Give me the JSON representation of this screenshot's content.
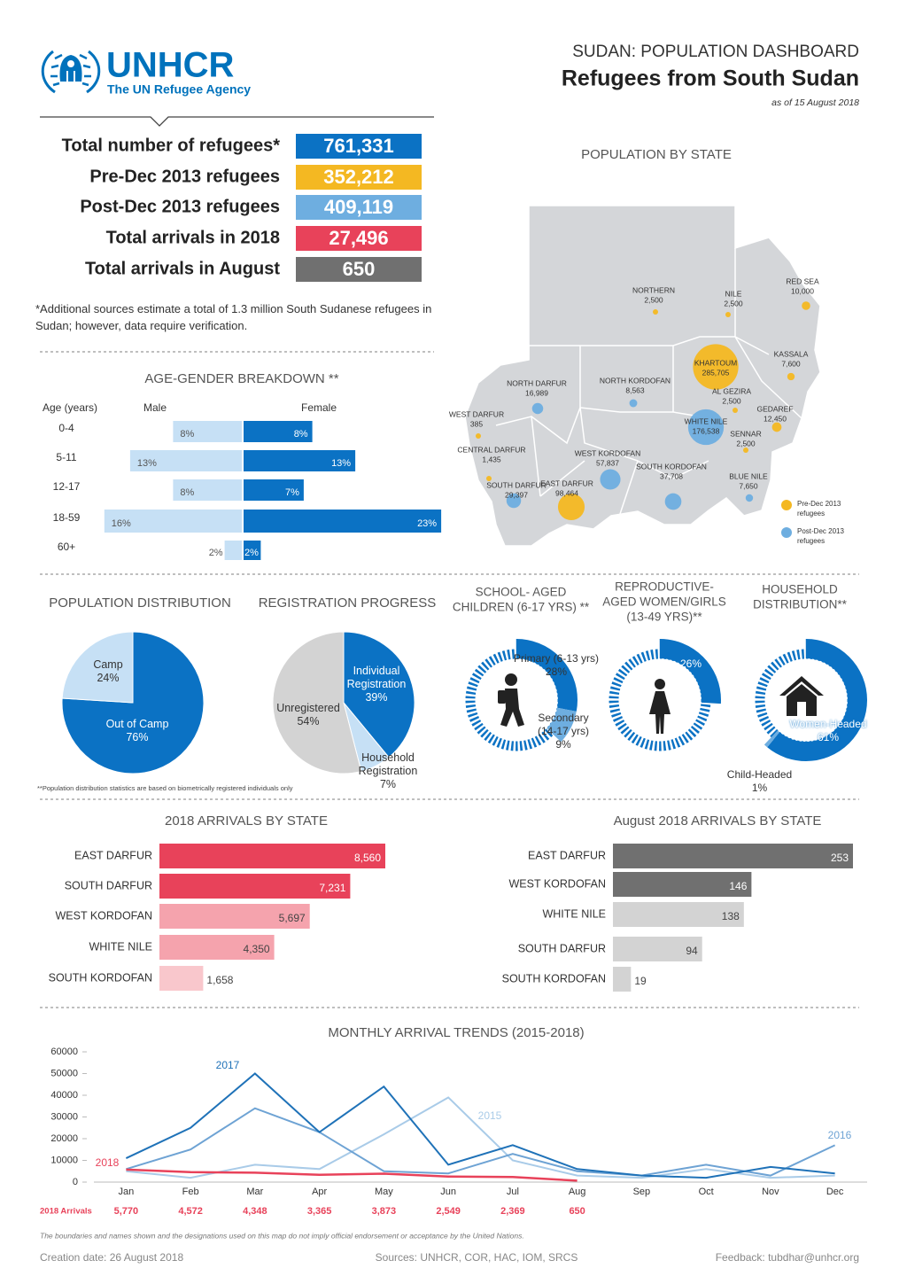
{
  "header": {
    "org": "UNHCR",
    "tagline": "The UN Refugee Agency",
    "kicker": "SUDAN: POPULATION DASHBOARD",
    "title": "Refugees from South Sudan",
    "date": "as of 15 August 2018"
  },
  "stats": [
    {
      "label": "Total number of refugees*",
      "value": "761,331",
      "color": "#0b72c4"
    },
    {
      "label": "Pre-Dec 2013 refugees",
      "value": "352,212",
      "color": "#f4b822"
    },
    {
      "label": "Post-Dec 2013 refugees",
      "value": "409,119",
      "color": "#6eaee0"
    },
    {
      "label": "Total arrivals in 2018",
      "value": "27,496",
      "color": "#e8425a"
    },
    {
      "label": "Total arrivals in August",
      "value": "650",
      "color": "#707070"
    }
  ],
  "note": "*Additional sources estimate a total of 1.3 million South Sudanese refugees in Sudan; however, data require verification.",
  "map": {
    "title": "POPULATION BY STATE",
    "states": [
      {
        "name": "NORTHERN",
        "value": 2500,
        "label": "2,500",
        "color": "#f4b822"
      },
      {
        "name": "NILE",
        "value": 2500,
        "label": "2,500",
        "color": "#f4b822"
      },
      {
        "name": "RED SEA",
        "value": 10000,
        "label": "10,000",
        "color": "#f4b822"
      },
      {
        "name": "KASSALA",
        "value": 7600,
        "label": "7,600",
        "color": "#f4b822"
      },
      {
        "name": "KHARTOUM",
        "value": 285705,
        "label": "285,705",
        "color": "#f4b822"
      },
      {
        "name": "AL GEZIRA",
        "value": 2500,
        "label": "2,500",
        "color": "#f4b822"
      },
      {
        "name": "GEDAREF",
        "value": 12450,
        "label": "12,450",
        "color": "#f4b822"
      },
      {
        "name": "WHITE NILE",
        "value": 176538,
        "label": "176,538",
        "color": "#6eaee0"
      },
      {
        "name": "SENNAR",
        "value": 2500,
        "label": "2,500",
        "color": "#f4b822"
      },
      {
        "name": "BLUE NILE",
        "value": 7650,
        "label": "7,650",
        "color": "#6eaee0"
      },
      {
        "name": "NORTH DARFUR",
        "value": 16989,
        "label": "16,989",
        "color": "#6eaee0"
      },
      {
        "name": "NORTH KORDOFAN",
        "value": 8563,
        "label": "8,563",
        "color": "#6eaee0"
      },
      {
        "name": "WEST DARFUR",
        "value": 385,
        "label": "385",
        "color": "#f4b822"
      },
      {
        "name": "CENTRAL DARFUR",
        "value": 1435,
        "label": "1,435",
        "color": "#f4b822"
      },
      {
        "name": "SOUTH DARFUR",
        "value": 29397,
        "label": "29,397",
        "color": "#6eaee0"
      },
      {
        "name": "EAST DARFUR",
        "value": 98464,
        "label": "98,464",
        "color": "#f4b822"
      },
      {
        "name": "WEST KORDOFAN",
        "value": 57837,
        "label": "57,837",
        "color": "#6eaee0"
      },
      {
        "name": "SOUTH KORDOFAN",
        "value": 37708,
        "label": "37,708",
        "color": "#6eaee0"
      }
    ],
    "legend": [
      {
        "name": "Pre-Dec 2013 refugees",
        "color": "#f4b822"
      },
      {
        "name": "Post-Dec 2013 refugees",
        "color": "#6eaee0"
      }
    ]
  },
  "chart_data": [
    {
      "type": "butterfly",
      "title": "AGE-GENDER BREAKDOWN **",
      "axis_label": "Age (years)",
      "categories": [
        "0-4",
        "5-11",
        "12-17",
        "18-59",
        "60+"
      ],
      "series": [
        {
          "name": "Male",
          "color": "#c6e0f5",
          "values": [
            8,
            13,
            8,
            16,
            2
          ],
          "value_labels": [
            "8%",
            "13%",
            "8%",
            "16%",
            "2%"
          ]
        },
        {
          "name": "Female",
          "color": "#0b72c4",
          "values": [
            8,
            13,
            7,
            23,
            2
          ],
          "value_labels": [
            "8%",
            "13%",
            "7%",
            "23%",
            "2%"
          ]
        }
      ]
    },
    {
      "type": "pie",
      "title": "POPULATION DISTRIBUTION",
      "categories": [
        "Out of Camp",
        "Camp"
      ],
      "values": [
        76,
        24
      ],
      "value_labels": [
        "76%",
        "24%"
      ],
      "colors": [
        "#0b72c4",
        "#c6e0f5"
      ],
      "note": "**Population distribution statistics are based on biometrically registered individuals only"
    },
    {
      "type": "pie",
      "title": "REGISTRATION PROGRESS",
      "categories": [
        "Individual Registration",
        "Household Registration",
        "Unregistered"
      ],
      "values": [
        39,
        7,
        54
      ],
      "value_labels": [
        "39%",
        "7%",
        "54%"
      ],
      "colors": [
        "#0b72c4",
        "#c6e0f5",
        "#d3d3d3"
      ]
    },
    {
      "type": "donut",
      "title": [
        "SCHOOL- AGED",
        "CHILDREN (6-17 YRS) **"
      ],
      "categories": [
        "Primary (6-13 yrs)",
        "Secondary (14-17 yrs)"
      ],
      "values": [
        28,
        9
      ],
      "value_labels": [
        "28%",
        "9%"
      ],
      "colors": [
        "#0b72c4",
        "#6eaee0"
      ]
    },
    {
      "type": "donut",
      "title": [
        "REPRODUCTIVE-",
        "AGED WOMEN/GIRLS",
        "(13-49 YRS)**"
      ],
      "values": [
        26
      ],
      "value_labels": [
        "26%"
      ],
      "colors": [
        "#0b72c4"
      ]
    },
    {
      "type": "donut",
      "title": [
        "HOUSEHOLD",
        "DISTRIBUTION**"
      ],
      "categories": [
        "Women-Headed",
        "Child-Headed"
      ],
      "values": [
        61,
        1
      ],
      "value_labels": [
        "61%",
        "1%"
      ],
      "colors": [
        "#0b72c4",
        "#6eaee0"
      ]
    },
    {
      "type": "hbar",
      "title": "2018 ARRIVALS BY STATE",
      "categories": [
        "EAST DARFUR",
        "SOUTH DARFUR",
        "WEST KORDOFAN",
        "WHITE NILE",
        "SOUTH KORDOFAN"
      ],
      "values": [
        8560,
        7231,
        5697,
        4350,
        1658
      ],
      "value_labels": [
        "8,560",
        "7,231",
        "5,697",
        "4,350",
        "1,658"
      ],
      "colors": [
        "#e8425a",
        "#e8425a",
        "#f5a3ad",
        "#f5a3ad",
        "#f9c7cc"
      ]
    },
    {
      "type": "hbar",
      "title": "August 2018 ARRIVALS BY STATE",
      "categories": [
        "EAST DARFUR",
        "WEST KORDOFAN",
        "WHITE NILE",
        "SOUTH DARFUR",
        "SOUTH KORDOFAN"
      ],
      "values": [
        253,
        146,
        138,
        94,
        19
      ],
      "value_labels": [
        "253",
        "146",
        "138",
        "94",
        "19"
      ],
      "colors": [
        "#707070",
        "#707070",
        "#d3d3d3",
        "#d3d3d3",
        "#d3d3d3"
      ]
    },
    {
      "type": "line",
      "title": "MONTHLY ARRIVAL TRENDS (2015-2018)",
      "categories": [
        "Jan",
        "Feb",
        "Mar",
        "Apr",
        "May",
        "Jun",
        "Jul",
        "Aug",
        "Sep",
        "Oct",
        "Nov",
        "Dec"
      ],
      "ylim": [
        0,
        60000
      ],
      "yticks": [
        0,
        10000,
        20000,
        30000,
        40000,
        50000,
        60000
      ],
      "row_label": "2018 Arrivals",
      "series": [
        {
          "name": "2015",
          "color": "#a9cbe8",
          "values": [
            5000,
            2000,
            8000,
            6000,
            22000,
            39000,
            10000,
            3000,
            2000,
            6000,
            2000,
            3000
          ]
        },
        {
          "name": "2016",
          "color": "#6ea3d4",
          "values": [
            6000,
            15000,
            34000,
            23000,
            5000,
            4000,
            13000,
            5000,
            3000,
            8000,
            3000,
            17000
          ]
        },
        {
          "name": "2017",
          "color": "#1f72b8",
          "values": [
            11000,
            25000,
            50000,
            23000,
            44000,
            8000,
            17000,
            6000,
            3000,
            2000,
            7000,
            4000
          ]
        },
        {
          "name": "2018",
          "color": "#e8425a",
          "values": [
            5770,
            4572,
            4348,
            3365,
            3873,
            2549,
            2369,
            650,
            null,
            null,
            null,
            null
          ],
          "value_labels": [
            "5,770",
            "4,572",
            "4,348",
            "3,365",
            "3,873",
            "2,549",
            "2,369",
            "650",
            null,
            null,
            null,
            null
          ]
        }
      ]
    }
  ],
  "footer": {
    "disclaimer": "The boundaries and names shown and the designations used on this map do not imply official endorsement or acceptance by the United Nations.",
    "created": "Creation date: 26 August 2018",
    "sources": "Sources: UNHCR, COR, HAC, IOM, SRCS",
    "feedback": "Feedback: tubdhar@unhcr.org"
  }
}
